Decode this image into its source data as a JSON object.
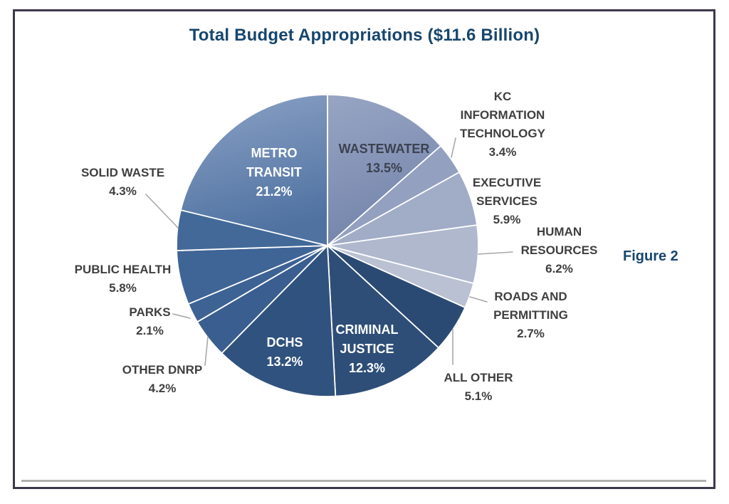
{
  "page": {
    "figure_caption": "Figure 2"
  },
  "colors": {
    "title_text": "#17466e",
    "outside_label_text": "#3f3f3f",
    "inside_label_light": "#ffffff",
    "inside_label_dark": "#3c4250",
    "leader_line": "#a8a8a8",
    "slice_divider": "#ffffff",
    "frame_border": "#3e3749",
    "bottom_rule": "#b0b0b0"
  },
  "chart_data": {
    "type": "pie",
    "title": "Total Budget Appropriations ($11.6 Billion)",
    "total_label": "$11.6 Billion",
    "start_angle_deg": 0,
    "direction": "clockwise",
    "legend_position": "none",
    "slices": [
      {
        "id": "wastewater",
        "label": "WASTEWATER",
        "value": 13.5,
        "pct_label": "13.5%",
        "color": "#7485ab",
        "color_light": "#98a5c4",
        "label_placement": "inside"
      },
      {
        "id": "kc-information-technology",
        "label": "KC INFORMATION TECHNOLOGY",
        "value": 3.4,
        "pct_label": "3.4%",
        "color": "#93a0c0",
        "label_placement": "outside"
      },
      {
        "id": "executive-services",
        "label": "EXECUTIVE SERVICES",
        "value": 5.9,
        "pct_label": "5.9%",
        "color": "#a1acc7",
        "label_placement": "outside"
      },
      {
        "id": "human-resources",
        "label": "HUMAN RESOURCES",
        "value": 6.2,
        "pct_label": "6.2%",
        "color": "#afb8cd",
        "label_placement": "outside"
      },
      {
        "id": "roads-and-permitting",
        "label": "ROADS AND PERMITTING",
        "value": 2.7,
        "pct_label": "2.7%",
        "color": "#bac1d2",
        "label_placement": "outside"
      },
      {
        "id": "all-other",
        "label": "ALL OTHER",
        "value": 5.1,
        "pct_label": "5.1%",
        "color": "#2b4a73",
        "label_placement": "outside"
      },
      {
        "id": "criminal-justice",
        "label": "CRIMINAL JUSTICE",
        "value": 12.3,
        "pct_label": "12.3%",
        "color": "#2e4e78",
        "label_placement": "inside"
      },
      {
        "id": "dchs",
        "label": "DCHS",
        "value": 13.2,
        "pct_label": "13.2%",
        "color": "#30527e",
        "label_placement": "inside"
      },
      {
        "id": "other-dnrp",
        "label": "OTHER DNRP",
        "value": 4.2,
        "pct_label": "4.2%",
        "color": "#3a5e8f",
        "label_placement": "outside"
      },
      {
        "id": "parks",
        "label": "PARKS",
        "value": 2.1,
        "pct_label": "2.1%",
        "color": "#3d6294",
        "label_placement": "outside"
      },
      {
        "id": "public-health",
        "label": "PUBLIC HEALTH",
        "value": 5.8,
        "pct_label": "5.8%",
        "color": "#3f6496",
        "label_placement": "outside"
      },
      {
        "id": "solid-waste",
        "label": "SOLID WASTE",
        "value": 4.3,
        "pct_label": "4.3%",
        "color": "#426998",
        "label_placement": "outside"
      },
      {
        "id": "metro-transit",
        "label": "METRO TRANSIT",
        "value": 21.2,
        "pct_label": "21.2%",
        "color": "#4f72a1",
        "color_light": "#8ca2c6",
        "label_placement": "inside"
      }
    ]
  }
}
